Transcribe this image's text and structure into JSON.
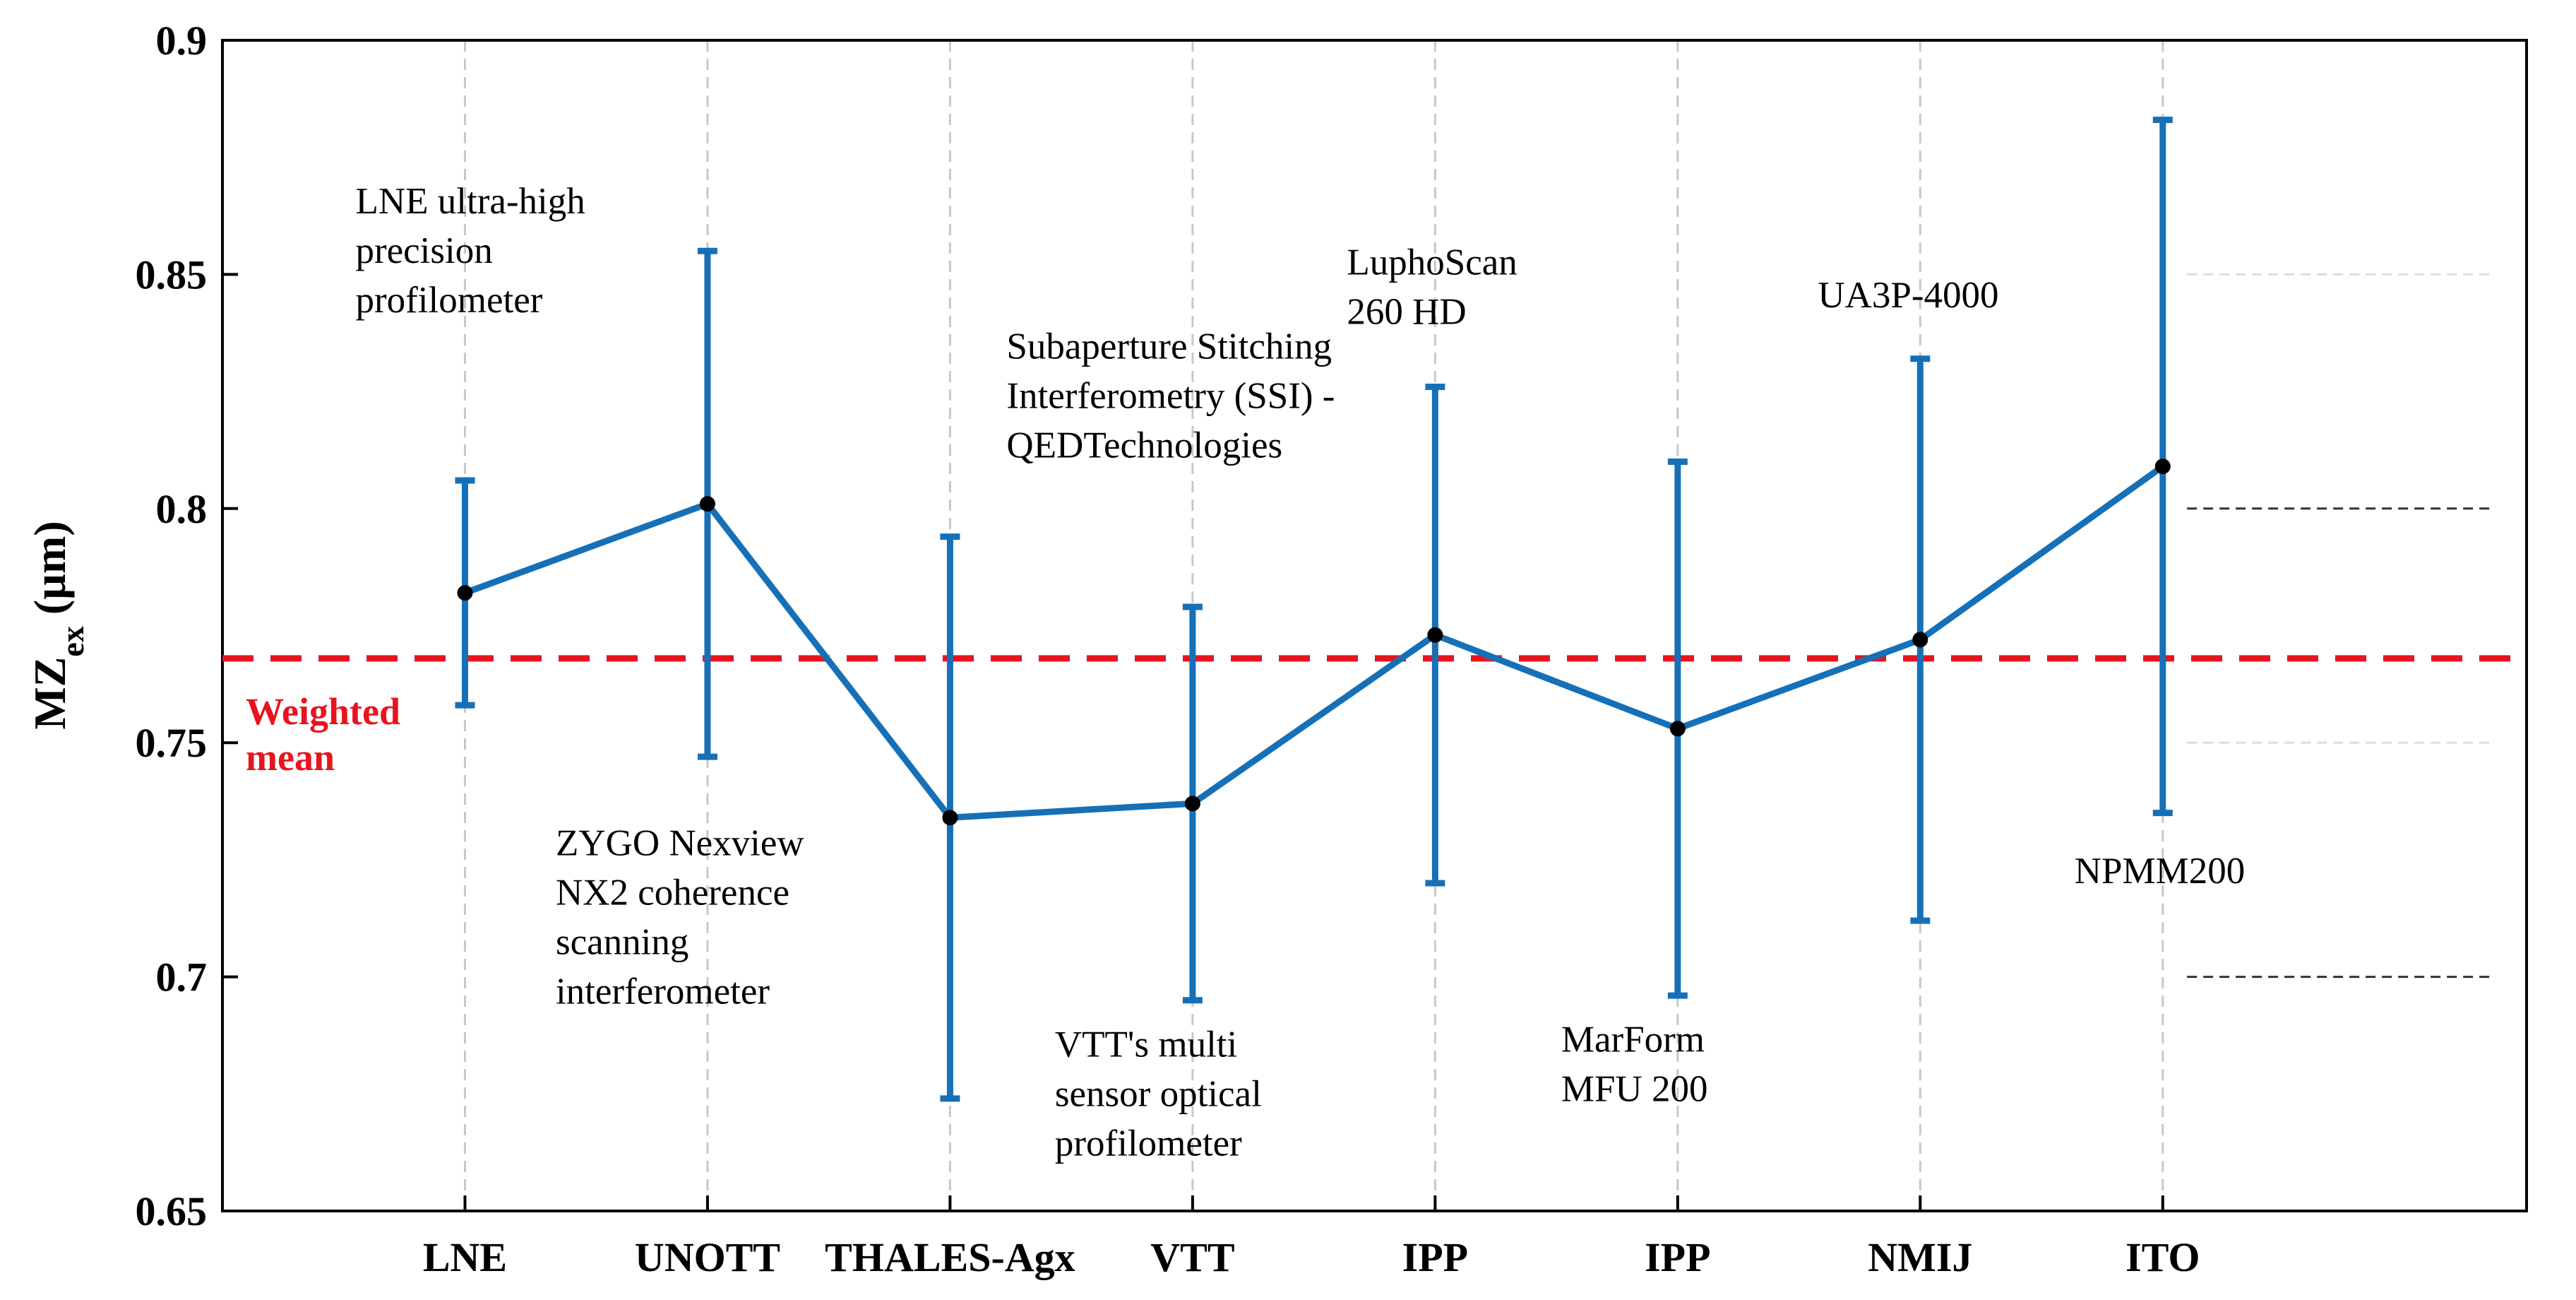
{
  "chart_data": {
    "type": "line",
    "ylabel": "MZ",
    "ylabel_subscript": "ex",
    "ylabel_unit": "(µm)",
    "ylim": [
      0.65,
      0.9
    ],
    "yticks": [
      0.65,
      0.7,
      0.75,
      0.8,
      0.85,
      0.9
    ],
    "ytick_labels": [
      "0.65",
      "0.7",
      "0.75",
      "0.8",
      "0.85",
      "0.9"
    ],
    "xlim": [
      0,
      9.5
    ],
    "categories": [
      "LNE",
      "UNOTT",
      "THALES-Agx",
      "VTT",
      "IPP",
      "IPP",
      "NMIJ",
      "ITO"
    ],
    "x": [
      1,
      2,
      3,
      4,
      5,
      6,
      7,
      8
    ],
    "values": [
      0.782,
      0.801,
      0.734,
      0.737,
      0.773,
      0.753,
      0.772,
      0.809
    ],
    "err_lower": [
      0.758,
      0.747,
      0.674,
      0.695,
      0.72,
      0.696,
      0.712,
      0.735
    ],
    "err_upper": [
      0.806,
      0.855,
      0.794,
      0.779,
      0.826,
      0.81,
      0.832,
      0.883
    ],
    "series_color": "#1570b8",
    "weighted_mean": {
      "value": 0.768,
      "label_lines": [
        "Weighted",
        "mean"
      ],
      "color": "#e8141d"
    },
    "reference_lines": [
      0.7,
      0.75,
      0.8,
      0.85
    ],
    "annotations": [
      {
        "category": "LNE",
        "anchor_x": 1,
        "anchor_y": 0.863,
        "lines": [
          "LNE ultra-high",
          "precision",
          "profilometer"
        ]
      },
      {
        "category": "UNOTT",
        "anchor_x": 2,
        "anchor_y": 0.726,
        "lines": [
          "ZYGO Nexview",
          "NX2 coherence",
          "scanning",
          "interferometer"
        ]
      },
      {
        "category": "THALES-Agx",
        "anchor_x": 3,
        "anchor_y": 0.832,
        "lines": [
          "Subaperture Stitching",
          "Interferometry (SSI) -",
          "QEDTechnologies"
        ]
      },
      {
        "category": "VTT",
        "anchor_x": 4,
        "anchor_y": 0.683,
        "lines": [
          "VTT's multi",
          "sensor optical",
          "profilometer"
        ]
      },
      {
        "category": "IPP",
        "anchor_x": 5,
        "anchor_y": 0.85,
        "lines": [
          "LuphoScan",
          "260 HD"
        ]
      },
      {
        "category": "IPP",
        "anchor_x": 6,
        "anchor_y": 0.684,
        "lines": [
          "MarForm",
          "MFU 200"
        ]
      },
      {
        "category": "NMIJ",
        "anchor_x": 7,
        "anchor_y": 0.843,
        "lines": [
          "UA3P-4000"
        ]
      },
      {
        "category": "ITO",
        "anchor_x": 8,
        "anchor_y": 0.72,
        "lines": [
          "NPMM200"
        ]
      }
    ]
  }
}
